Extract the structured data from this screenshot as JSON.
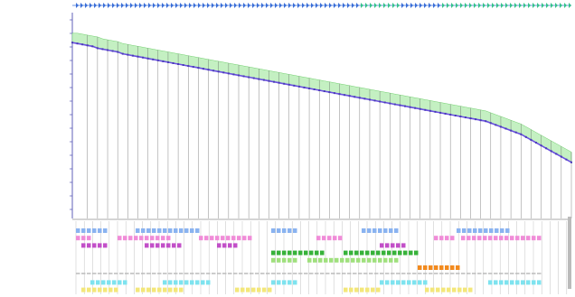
{
  "colors": {
    "background": "#ffffff",
    "ruler_blue": "#3a6fd8",
    "ruler_green": "#36c28a",
    "profile_purple": "#6a4fe0",
    "axis": "#3a3aa8",
    "fill_green": "#c4f0c2",
    "guide": "#555555",
    "track_pink": "#f08cd8",
    "track_magenta": "#c24fc8",
    "track_green": "#37b23a",
    "track_lightgreen": "#9fe07d",
    "track_orange": "#f28a1e",
    "track_cyan": "#7ee3ef",
    "track_blue": "#8ab3f0",
    "track_gray": "#bbbbbb",
    "track_yellow": "#f3e77a"
  },
  "chart_data": {
    "type": "line",
    "title": "",
    "xlabel": "",
    "ylabel": "",
    "x_tick_labels": [],
    "y_tick_labels": [],
    "series": [
      {
        "values": [
          32,
          33,
          34,
          35,
          36,
          38,
          39,
          40,
          41,
          42,
          44,
          45,
          46,
          47,
          48,
          49,
          50,
          51,
          52,
          53,
          54,
          55,
          56,
          57,
          58,
          59,
          60,
          61,
          62,
          63,
          64,
          65,
          66,
          67,
          68,
          69,
          70,
          71,
          72,
          73,
          74,
          75,
          76,
          77,
          78,
          79,
          80,
          81,
          82,
          83,
          84,
          85,
          86,
          87,
          88,
          89,
          90,
          91,
          92,
          93,
          94,
          95,
          96,
          97,
          98,
          99,
          100,
          101,
          102,
          103,
          104,
          105,
          106,
          107,
          108,
          109,
          110,
          111,
          112,
          113,
          114,
          115,
          116,
          118,
          120,
          122,
          124,
          126,
          128,
          130,
          133,
          136,
          139,
          142,
          145,
          148,
          151,
          154,
          157,
          160
        ]
      }
    ],
    "upper_band": [
      22,
      22,
      23,
      24,
      25,
      26,
      28,
      29,
      30,
      31,
      33,
      34,
      35,
      36,
      37,
      38,
      39,
      40,
      41,
      42,
      43,
      44,
      45,
      46,
      47,
      48,
      49,
      50,
      51,
      52,
      53,
      54,
      55,
      56,
      57,
      58,
      59,
      60,
      61,
      62,
      63,
      64,
      65,
      66,
      67,
      68,
      69,
      70,
      71,
      72,
      73,
      74,
      75,
      76,
      77,
      78,
      79,
      80,
      81,
      82,
      83,
      84,
      85,
      86,
      87,
      88,
      89,
      90,
      91,
      92,
      93,
      94,
      95,
      96,
      97,
      98,
      99,
      100,
      101,
      102,
      103,
      104,
      105,
      107,
      109,
      111,
      113,
      115,
      117,
      119,
      122,
      125,
      128,
      131,
      134,
      137,
      140,
      143,
      146,
      149
    ],
    "ylim": [
      0,
      220
    ],
    "grid": false,
    "legend": "none"
  },
  "tracks": {
    "row_labels": [
      "",
      "",
      "",
      "",
      "",
      "",
      "",
      "",
      "",
      "",
      "",
      "",
      "",
      "",
      "",
      "",
      "",
      ""
    ],
    "rows": [
      {
        "color": "track_blue"
      },
      {
        "color": "track_pink"
      },
      {
        "color": "track_magenta"
      },
      {
        "color": "track_green"
      },
      {
        "color": "track_lightgreen"
      },
      {
        "color": "track_orange"
      },
      {
        "color": "track_gray"
      },
      {
        "color": "track_cyan"
      },
      {
        "color": "track_yellow"
      }
    ]
  }
}
